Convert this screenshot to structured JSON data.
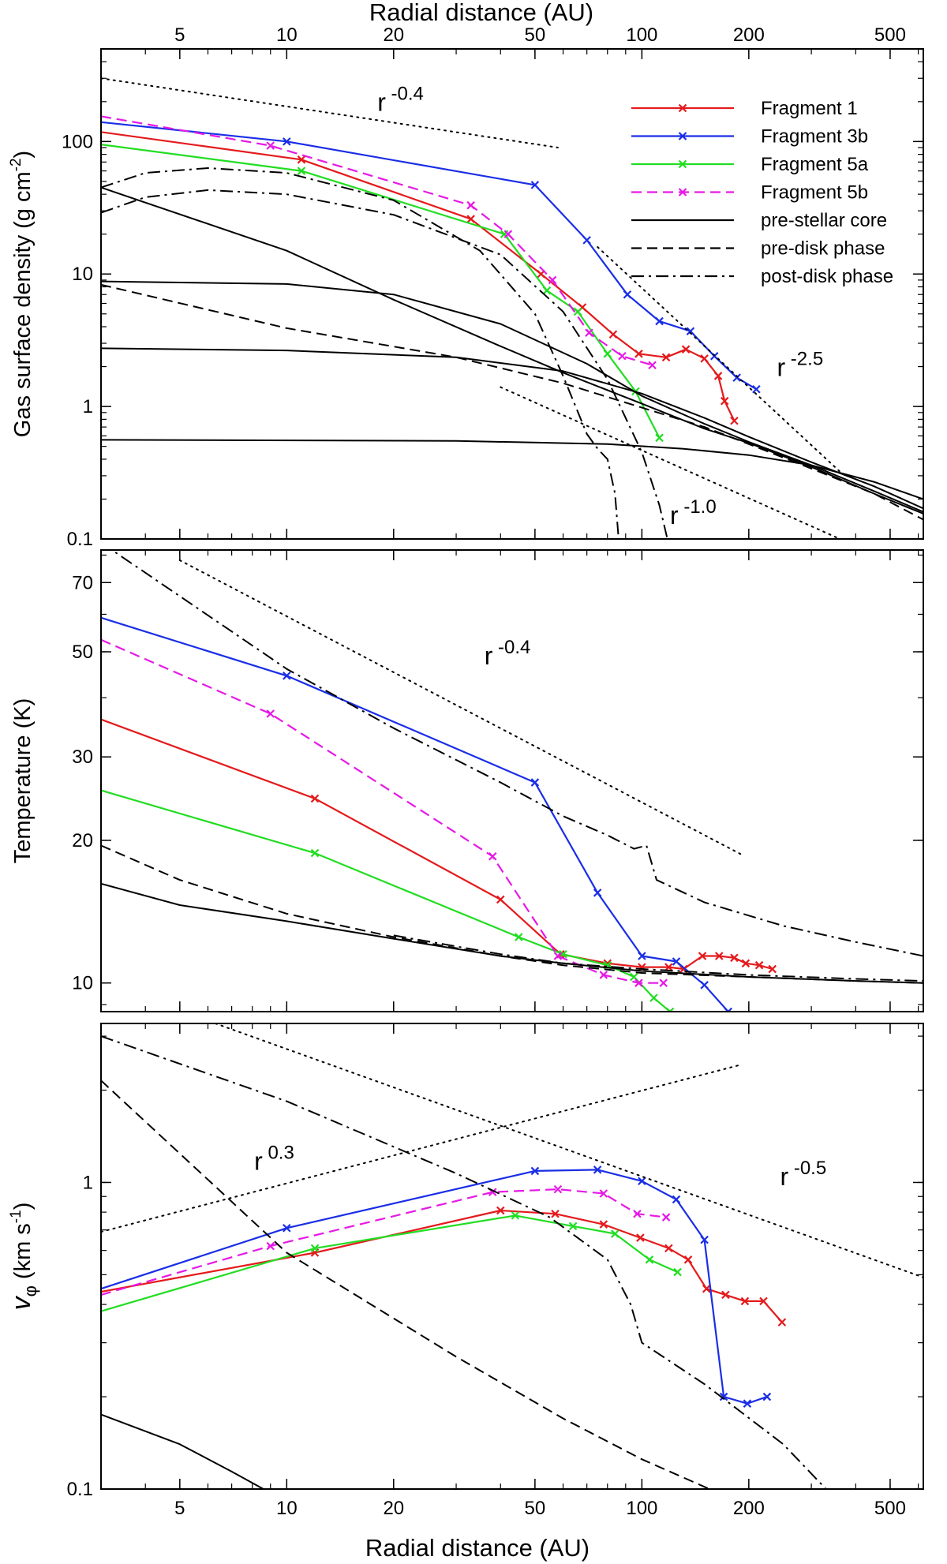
{
  "top_xlabel": "Radial distance (AU)",
  "bottom_xlabel": "Radial distance (AU)",
  "colors": {
    "Fragment 1": "#e41a1c",
    "Fragment 3b": "#1a2ee6",
    "Fragment 5a": "#22dd22",
    "Fragment 5b": "#e619e6",
    "model": "#000000"
  },
  "chart_data": [
    {
      "type": "line",
      "ylabel": "Gas surface density (g cm",
      "ylabel_exp": "-2",
      "ylabel_end": ")",
      "xscale": "log",
      "yscale": "log",
      "xlim": [
        3,
        620
      ],
      "ylim": [
        0.1,
        500
      ],
      "x_ticks": [
        "5",
        "10",
        "20",
        "50",
        "100",
        "200",
        "500"
      ],
      "x_tick_values": [
        5,
        10,
        20,
        50,
        100,
        200,
        500
      ],
      "y_ticks": [
        "0.1",
        "1",
        "10",
        "100"
      ],
      "y_tick_values": [
        0.1,
        1,
        10,
        100
      ],
      "legend": {
        "position": "top-right",
        "entries": [
          {
            "label": "Fragment 1",
            "style": "solid",
            "color": "#e41a1c",
            "marker": "x"
          },
          {
            "label": "Fragment 3b",
            "style": "solid",
            "color": "#1a2ee6",
            "marker": "x"
          },
          {
            "label": "Fragment 5a",
            "style": "solid",
            "color": "#22dd22",
            "marker": "x"
          },
          {
            "label": "Fragment 5b",
            "style": "dashed",
            "color": "#e619e6",
            "marker": "x"
          },
          {
            "label": "pre-stellar core",
            "style": "solid",
            "color": "#000000",
            "marker": ""
          },
          {
            "label": "pre-disk phase",
            "style": "dashed",
            "color": "#000000",
            "marker": ""
          },
          {
            "label": "post-disk phase",
            "style": "dashdot",
            "color": "#000000",
            "marker": ""
          }
        ]
      },
      "annotations": [
        {
          "base": "r",
          "exp": "-0.4",
          "x": 18,
          "y": 170
        },
        {
          "base": "r",
          "exp": "-2.5",
          "x": 240,
          "y": 1.7
        },
        {
          "base": "r",
          "exp": "-1.0",
          "x": 120,
          "y": 0.13
        }
      ],
      "series": [
        {
          "name": "Fragment 1",
          "style": "solid",
          "color": "#e41a1c",
          "marker": "x",
          "x": [
            3,
            11,
            33,
            52,
            68,
            83,
            98,
            117,
            133,
            150,
            164,
            171,
            182
          ],
          "y": [
            118,
            73,
            26,
            10,
            5.6,
            3.5,
            2.5,
            2.35,
            2.7,
            2.3,
            1.7,
            1.1,
            0.78
          ]
        },
        {
          "name": "Fragment 3b",
          "style": "solid",
          "color": "#1a2ee6",
          "marker": "x",
          "x": [
            3,
            10,
            50,
            70,
            91,
            112,
            137,
            160,
            185,
            210
          ],
          "y": [
            140,
            100,
            47,
            18,
            7,
            4.4,
            3.7,
            2.4,
            1.65,
            1.35
          ]
        },
        {
          "name": "Fragment 5a",
          "style": "solid",
          "color": "#22dd22",
          "marker": "x",
          "x": [
            3,
            11,
            41,
            54,
            66,
            80,
            96,
            112
          ],
          "y": [
            95,
            60,
            20,
            7.5,
            5.2,
            2.5,
            1.3,
            0.58
          ]
        },
        {
          "name": "Fragment 5b",
          "style": "dashed",
          "color": "#e619e6",
          "marker": "x",
          "x": [
            3,
            9,
            33,
            42,
            56,
            71,
            88,
            107
          ],
          "y": [
            155,
            93,
            33,
            20,
            9,
            3.6,
            2.4,
            2.05
          ]
        },
        {
          "name": "",
          "style": "dotted",
          "color": "#000000",
          "marker": "",
          "x": [
            3,
            58
          ],
          "y": [
            300,
            90
          ]
        },
        {
          "name": "",
          "style": "dotted",
          "color": "#000000",
          "marker": "",
          "x": [
            75,
            360
          ],
          "y": [
            16,
            0.325
          ]
        },
        {
          "name": "",
          "style": "dotted",
          "color": "#000000",
          "marker": "",
          "x": [
            40,
            380
          ],
          "y": [
            1.4,
            0.094
          ]
        },
        {
          "name": "",
          "style": "solid",
          "color": "#000000",
          "marker": "",
          "x": [
            3,
            10,
            20,
            40,
            60,
            100,
            150,
            200,
            300,
            450,
            620
          ],
          "y": [
            45,
            15,
            6.4,
            2.85,
            1.8,
            1.05,
            0.68,
            0.53,
            0.35,
            0.22,
            0.155
          ]
        },
        {
          "name": "",
          "style": "solid",
          "color": "#000000",
          "marker": "",
          "x": [
            3,
            10,
            20,
            40,
            70,
            100,
            150,
            200,
            300,
            450,
            620
          ],
          "y": [
            8.8,
            8.4,
            7,
            4.2,
            2.1,
            1.2,
            0.74,
            0.54,
            0.36,
            0.23,
            0.16
          ]
        },
        {
          "name": "",
          "style": "solid",
          "color": "#000000",
          "marker": "",
          "x": [
            3,
            10,
            30,
            60,
            100,
            150,
            200,
            300,
            450,
            620
          ],
          "y": [
            2.75,
            2.65,
            2.35,
            1.85,
            1.25,
            0.82,
            0.59,
            0.38,
            0.25,
            0.17
          ]
        },
        {
          "name": "",
          "style": "solid",
          "color": "#000000",
          "marker": "",
          "x": [
            3,
            30,
            80,
            130,
            200,
            300,
            450,
            620
          ],
          "y": [
            0.56,
            0.55,
            0.52,
            0.48,
            0.43,
            0.36,
            0.27,
            0.2
          ]
        },
        {
          "name": "",
          "style": "dashed",
          "color": "#000000",
          "marker": "",
          "x": [
            3,
            10,
            30,
            60,
            100,
            150,
            200,
            300,
            450,
            620
          ],
          "y": [
            8.3,
            3.9,
            2.35,
            1.5,
            0.98,
            0.7,
            0.52,
            0.34,
            0.22,
            0.14
          ]
        },
        {
          "name": "",
          "style": "dashdot",
          "color": "#000000",
          "marker": "",
          "x": [
            3,
            4,
            6,
            10,
            20,
            35,
            50,
            60,
            70,
            75,
            80,
            84,
            86
          ],
          "y": [
            45,
            58,
            63,
            58,
            36,
            15,
            5,
            1.7,
            0.62,
            0.48,
            0.4,
            0.22,
            0.1
          ]
        },
        {
          "name": "",
          "style": "dashdot",
          "color": "#000000",
          "marker": "",
          "x": [
            3,
            4,
            6,
            10,
            20,
            40,
            60,
            80,
            100,
            112,
            118
          ],
          "y": [
            29,
            38,
            43,
            40,
            28,
            14,
            5.2,
            1.6,
            0.45,
            0.18,
            0.1
          ]
        }
      ]
    },
    {
      "type": "line",
      "ylabel": "Temperature (K)",
      "xscale": "log",
      "yscale": "log",
      "xlim": [
        3,
        620
      ],
      "ylim": [
        8.7,
        82
      ],
      "x_ticks": [],
      "x_tick_values": [],
      "y_ticks": [
        "10",
        "20",
        "30",
        "50",
        "70"
      ],
      "y_tick_values": [
        10,
        20,
        30,
        50,
        70
      ],
      "annotations": [
        {
          "base": "r",
          "exp": "-0.4",
          "x": 36,
          "y": 47
        }
      ],
      "series": [
        {
          "name": "Fragment 1",
          "style": "solid",
          "color": "#e41a1c",
          "marker": "x",
          "x": [
            3,
            12,
            40,
            59,
            80,
            100,
            119,
            131,
            148,
            165,
            182,
            196,
            214,
            233
          ],
          "y": [
            36,
            24.5,
            15,
            11.5,
            11,
            10.8,
            10.8,
            10.7,
            11.4,
            11.4,
            11.3,
            11,
            10.9,
            10.7
          ]
        },
        {
          "name": "Fragment 3b",
          "style": "solid",
          "color": "#1a2ee6",
          "marker": "x",
          "x": [
            3,
            10,
            50,
            75,
            100,
            125,
            150,
            175
          ],
          "y": [
            59,
            44.5,
            26.5,
            15.5,
            11.4,
            11.1,
            9.9,
            8.7
          ]
        },
        {
          "name": "Fragment 5a",
          "style": "solid",
          "color": "#22dd22",
          "marker": "x",
          "x": [
            3,
            12,
            45,
            60,
            80,
            95,
            108,
            120
          ],
          "y": [
            25.5,
            18.8,
            12.5,
            11.5,
            10.9,
            10.3,
            9.3,
            8.7
          ]
        },
        {
          "name": "Fragment 5b",
          "style": "dashed",
          "color": "#e619e6",
          "marker": "x",
          "x": [
            3,
            9,
            38,
            58,
            78,
            98,
            115
          ],
          "y": [
            53,
            37,
            18.5,
            11.4,
            10.4,
            10.0,
            10.0
          ]
        },
        {
          "name": "",
          "style": "dotted",
          "color": "#000000",
          "marker": "",
          "x": [
            5,
            190
          ],
          "y": [
            78,
            18.7
          ]
        },
        {
          "name": "",
          "style": "solid",
          "color": "#000000",
          "marker": "",
          "x": [
            3,
            5,
            10,
            20,
            40,
            60,
            100,
            200,
            400,
            620
          ],
          "y": [
            16.2,
            14.6,
            13.5,
            12.4,
            11.4,
            11,
            10.6,
            10.3,
            10.1,
            10.0
          ]
        },
        {
          "name": "",
          "style": "dashed",
          "color": "#000000",
          "marker": "",
          "x": [
            3,
            5,
            10,
            20,
            40,
            60,
            100,
            200,
            400,
            620
          ],
          "y": [
            19.5,
            16.5,
            14,
            12.5,
            11.4,
            10.9,
            10.5,
            10.3,
            10.1,
            10.0
          ]
        },
        {
          "name": "",
          "style": "dashdot",
          "color": "#000000",
          "marker": "",
          "x": [
            3,
            10,
            20,
            40,
            60,
            80,
            95,
            103,
            110,
            150,
            250,
            400,
            620
          ],
          "y": [
            85,
            46,
            34.5,
            26.5,
            22.5,
            20.5,
            19.2,
            19.5,
            16.5,
            14.8,
            13.2,
            12.2,
            11.4
          ]
        },
        {
          "name": "",
          "style": "dashdot",
          "color": "#000000",
          "marker": "",
          "x": [
            20,
            40,
            60,
            100,
            200,
            400,
            620
          ],
          "y": [
            12.6,
            11.5,
            11.0,
            10.7,
            10.4,
            10.2,
            10.1
          ]
        }
      ]
    },
    {
      "type": "line",
      "ylabel": "v",
      "ylabel_sub": "φ",
      "ylabel_rest": " (km s",
      "ylabel_exp": "-1",
      "ylabel_end": ")",
      "xscale": "log",
      "yscale": "log",
      "xlim": [
        3,
        620
      ],
      "ylim": [
        0.1,
        3.3
      ],
      "x_ticks": [
        "5",
        "10",
        "20",
        "50",
        "100",
        "200",
        "500"
      ],
      "x_tick_values": [
        5,
        10,
        20,
        50,
        100,
        200,
        500
      ],
      "y_ticks": [
        "0.1",
        "1"
      ],
      "y_tick_values": [
        0.1,
        1
      ],
      "annotations": [
        {
          "base": "r",
          "exp": "0.3",
          "x": 8.1,
          "y": 1.1
        },
        {
          "base": "r",
          "exp": "-0.5",
          "x": 245,
          "y": 0.98
        }
      ],
      "series": [
        {
          "name": "Fragment 1",
          "style": "solid",
          "color": "#e41a1c",
          "marker": "x",
          "x": [
            3,
            12,
            40,
            57,
            78,
            99,
            119,
            135,
            152,
            172,
            195,
            220,
            248
          ],
          "y": [
            0.44,
            0.59,
            0.81,
            0.79,
            0.73,
            0.66,
            0.61,
            0.56,
            0.45,
            0.43,
            0.41,
            0.41,
            0.35
          ]
        },
        {
          "name": "Fragment 3b",
          "style": "solid",
          "color": "#1a2ee6",
          "marker": "x",
          "x": [
            3,
            10,
            50,
            75,
            100,
            125,
            150,
            170,
            198,
            225
          ],
          "y": [
            0.45,
            0.71,
            1.09,
            1.1,
            1.01,
            0.88,
            0.65,
            0.2,
            0.19,
            0.2
          ]
        },
        {
          "name": "Fragment 5a",
          "style": "solid",
          "color": "#22dd22",
          "marker": "x",
          "x": [
            3,
            12,
            44,
            64,
            84,
            105,
            126
          ],
          "y": [
            0.38,
            0.61,
            0.78,
            0.72,
            0.68,
            0.56,
            0.51
          ]
        },
        {
          "name": "Fragment 5b",
          "style": "dashed",
          "color": "#e619e6",
          "marker": "x",
          "x": [
            3,
            9,
            38,
            58,
            78,
            97,
            117
          ],
          "y": [
            0.43,
            0.62,
            0.93,
            0.95,
            0.92,
            0.79,
            0.77
          ]
        },
        {
          "name": "",
          "style": "dotted",
          "color": "#000000",
          "marker": "",
          "x": [
            3,
            190
          ],
          "y": [
            0.69,
            2.42
          ]
        },
        {
          "name": "",
          "style": "dotted",
          "color": "#000000",
          "marker": "",
          "x": [
            6.3,
            620
          ],
          "y": [
            3.3,
            0.49
          ]
        },
        {
          "name": "",
          "style": "dashed",
          "color": "#000000",
          "marker": "",
          "x": [
            3,
            10,
            30,
            60,
            100,
            155
          ],
          "y": [
            2.15,
            0.59,
            0.27,
            0.17,
            0.125,
            0.1
          ]
        },
        {
          "name": "",
          "style": "dashdot",
          "color": "#000000",
          "marker": "",
          "x": [
            3,
            10,
            30,
            55,
            80,
            93,
            100,
            150,
            250,
            330
          ],
          "y": [
            3.0,
            1.84,
            1.07,
            0.77,
            0.56,
            0.4,
            0.3,
            0.22,
            0.14,
            0.1
          ]
        },
        {
          "name": "",
          "style": "solid",
          "color": "#000000",
          "marker": "",
          "x": [
            3,
            5,
            7,
            8.6
          ],
          "y": [
            0.175,
            0.14,
            0.114,
            0.1
          ]
        }
      ]
    }
  ]
}
